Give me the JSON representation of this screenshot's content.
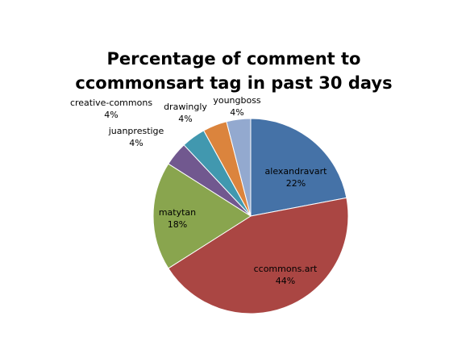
{
  "chart_data": {
    "type": "pie",
    "title": "Percentage of comment to ccommonsart tag in past 30 days",
    "start_angle_deg": 0,
    "direction": "clockwise",
    "legend": "none",
    "slices": [
      {
        "label": "alexandravart",
        "value": 22,
        "value_label": "22%",
        "color": "#4572A7"
      },
      {
        "label": "ccommons.art",
        "value": 44,
        "value_label": "44%",
        "color": "#AA4643"
      },
      {
        "label": "matytan",
        "value": 18,
        "value_label": "18%",
        "color": "#89A54E"
      },
      {
        "label": "juanprestige",
        "value": 4,
        "value_label": "4%",
        "color": "#71588F"
      },
      {
        "label": "creative-commons",
        "value": 4,
        "value_label": "4%",
        "color": "#4198AF"
      },
      {
        "label": "drawingly",
        "value": 4,
        "value_label": "4%",
        "color": "#DB843D"
      },
      {
        "label": "youngboss",
        "value": 4,
        "value_label": "4%",
        "color": "#93A9CF"
      }
    ]
  }
}
